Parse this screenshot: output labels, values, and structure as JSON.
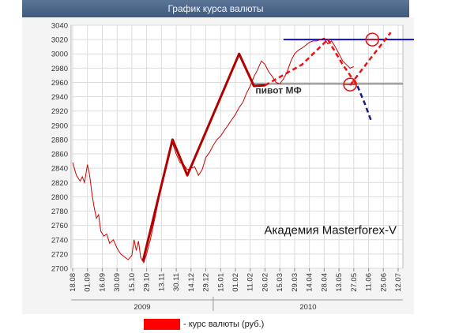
{
  "chart_title": "График курса валюты",
  "legend_label": "- курс валюты (руб.)",
  "annotation_pivot": "пивот МФ",
  "watermark": "Академия Masterforex-V",
  "colors": {
    "price_line": "#cc0000",
    "trend_line": "#b00000",
    "dashed_red": "#ee1111",
    "resistance": "#1010cc",
    "pivot_line": "#555555",
    "title_bar": "#4a6689",
    "legend_swatch": "#ff0000"
  },
  "chart_data": {
    "type": "line",
    "title": "График курса валюты",
    "ylim": [
      2700,
      3040
    ],
    "y_ticks": [
      2700,
      2720,
      2740,
      2760,
      2780,
      2800,
      2820,
      2840,
      2860,
      2880,
      2900,
      2920,
      2940,
      2960,
      2980,
      3000,
      3020,
      3040
    ],
    "x_tick_labels": [
      "18.08",
      "01.09",
      "16.09",
      "30.09",
      "15.10",
      "29.10",
      "13.11",
      "30.11",
      "14.12",
      "29.12",
      "15.01",
      "01.02",
      "11.02",
      "26.02",
      "15.03",
      "29.03",
      "14.04",
      "28.04",
      "13.05",
      "27.05",
      "11.06",
      "25.06",
      "12.07"
    ],
    "year_labels": [
      "2009",
      "2010"
    ],
    "series": [
      {
        "name": "курс валюты (руб.)",
        "values": [
          [
            0,
            2848
          ],
          [
            0.5,
            2830
          ],
          [
            1,
            2822
          ],
          [
            1.3,
            2828
          ],
          [
            1.6,
            2820
          ],
          [
            2,
            2845
          ],
          [
            2.3,
            2830
          ],
          [
            2.6,
            2805
          ],
          [
            2.9,
            2785
          ],
          [
            3.2,
            2770
          ],
          [
            3.5,
            2775
          ],
          [
            3.8,
            2752
          ],
          [
            4.2,
            2745
          ],
          [
            4.6,
            2748
          ],
          [
            5,
            2735
          ],
          [
            5.5,
            2740
          ],
          [
            6,
            2728
          ],
          [
            6.5,
            2720
          ],
          [
            7,
            2716
          ],
          [
            7.5,
            2712
          ],
          [
            8,
            2718
          ],
          [
            8.3,
            2740
          ],
          [
            8.6,
            2725
          ],
          [
            8.9,
            2738
          ],
          [
            9.2,
            2715
          ],
          [
            9.6,
            2708
          ],
          [
            10,
            2720
          ],
          [
            10.5,
            2740
          ],
          [
            11,
            2765
          ],
          [
            11.5,
            2790
          ],
          [
            12,
            2815
          ],
          [
            12.5,
            2840
          ],
          [
            13,
            2860
          ],
          [
            13.5,
            2875
          ],
          [
            14,
            2860
          ],
          [
            14.5,
            2848
          ],
          [
            15,
            2845
          ],
          [
            15.5,
            2838
          ],
          [
            16,
            2840
          ],
          [
            16.5,
            2842
          ],
          [
            17,
            2830
          ],
          [
            17.5,
            2838
          ],
          [
            18,
            2855
          ],
          [
            18.5,
            2862
          ],
          [
            19,
            2872
          ],
          [
            19.5,
            2880
          ],
          [
            20,
            2885
          ],
          [
            20.5,
            2893
          ],
          [
            21,
            2900
          ],
          [
            21.5,
            2908
          ],
          [
            22,
            2915
          ],
          [
            22.5,
            2925
          ],
          [
            23,
            2932
          ],
          [
            23.5,
            2945
          ],
          [
            24,
            2955
          ],
          [
            24.5,
            2968
          ],
          [
            25,
            2978
          ],
          [
            25.5,
            2990
          ],
          [
            26,
            2985
          ],
          [
            26.5,
            2975
          ],
          [
            27,
            2968
          ],
          [
            27.5,
            2960
          ],
          [
            28,
            2958
          ],
          [
            28.5,
            2965
          ],
          [
            29,
            2975
          ],
          [
            29.5,
            2990
          ],
          [
            30,
            3000
          ],
          [
            30.5,
            3005
          ],
          [
            31,
            3008
          ],
          [
            31.5,
            3012
          ],
          [
            32,
            3016
          ],
          [
            32.5,
            3018
          ],
          [
            33,
            3018
          ],
          [
            33.5,
            3020
          ],
          [
            34,
            3022
          ],
          [
            34.5,
            3014
          ],
          [
            35,
            3018
          ],
          [
            35.5,
            3010
          ],
          [
            36,
            3000
          ],
          [
            36.5,
            2990
          ],
          [
            37,
            2985
          ],
          [
            37.5,
            2980
          ],
          [
            38,
            2982
          ]
        ]
      }
    ],
    "trend_line": [
      [
        9.5,
        2710
      ],
      [
        13.5,
        2880
      ],
      [
        15.5,
        2830
      ],
      [
        22.5,
        3000
      ],
      [
        24.5,
        2955
      ],
      [
        26,
        2956
      ]
    ],
    "dashed_up": [
      [
        26,
        2956
      ],
      [
        31,
        2985
      ],
      [
        34.5,
        3020
      ]
    ],
    "dashed_down": [
      [
        34.5,
        3020
      ],
      [
        36.5,
        2985
      ],
      [
        38.5,
        2955
      ],
      [
        39.5,
        2930
      ]
    ],
    "dashed_extension": [
      [
        37.5,
        2956
      ],
      [
        40,
        2990
      ],
      [
        43,
        3030
      ]
    ],
    "resistance_level": 3020,
    "pivot_level": 2958,
    "circles": [
      [
        40.5,
        3020
      ],
      [
        37.5,
        2957
      ]
    ]
  }
}
